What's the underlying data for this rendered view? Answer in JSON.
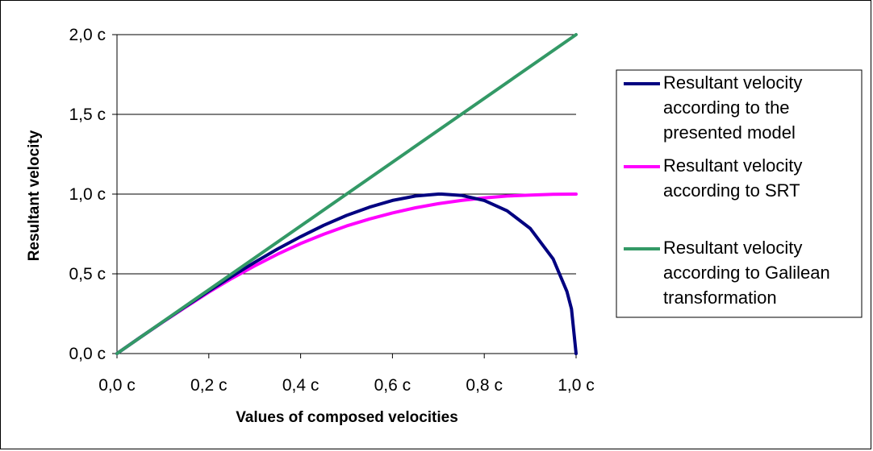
{
  "chart_data": {
    "type": "line",
    "title": "",
    "xlabel": "Values of composed velocities",
    "ylabel": "Resultant velocity",
    "xlim": [
      0,
      1
    ],
    "ylim": [
      0,
      2
    ],
    "x_ticks": [
      {
        "value": 0.0,
        "label": "0,0 c"
      },
      {
        "value": 0.2,
        "label": "0,2 c"
      },
      {
        "value": 0.4,
        "label": "0,4 c"
      },
      {
        "value": 0.6,
        "label": "0,6 c"
      },
      {
        "value": 0.8,
        "label": "0,8 c"
      },
      {
        "value": 1.0,
        "label": "1,0 c"
      }
    ],
    "y_ticks": [
      {
        "value": 0.0,
        "label": "0,0 c"
      },
      {
        "value": 0.5,
        "label": "0,5 c"
      },
      {
        "value": 1.0,
        "label": "1,0 c"
      },
      {
        "value": 1.5,
        "label": "1,5 c"
      },
      {
        "value": 2.0,
        "label": "2,0 c"
      }
    ],
    "grid": "horizontal",
    "legend_position": "right",
    "series": [
      {
        "name": "Resultant velocity according to the presented model",
        "legend_lines": [
          "Resultant velocity",
          "according to the",
          "presented model"
        ],
        "color": "#000080",
        "x": [
          0.0,
          0.05,
          0.1,
          0.15,
          0.2,
          0.25,
          0.3,
          0.35,
          0.4,
          0.45,
          0.5,
          0.55,
          0.6,
          0.65,
          0.7,
          0.707,
          0.75,
          0.8,
          0.85,
          0.9,
          0.95,
          0.98,
          0.99,
          1.0
        ],
        "values": [
          0.0,
          0.1,
          0.199,
          0.296,
          0.392,
          0.484,
          0.572,
          0.656,
          0.733,
          0.804,
          0.866,
          0.918,
          0.96,
          0.988,
          0.9998,
          1.0,
          0.992,
          0.96,
          0.895,
          0.785,
          0.594,
          0.39,
          0.28,
          0.0
        ]
      },
      {
        "name": "Resultant velocity according to SRT",
        "legend_lines": [
          "Resultant velocity",
          "according to SRT"
        ],
        "color": "#ff00ff",
        "x": [
          0.0,
          0.05,
          0.1,
          0.15,
          0.2,
          0.25,
          0.3,
          0.35,
          0.4,
          0.45,
          0.5,
          0.55,
          0.6,
          0.65,
          0.7,
          0.75,
          0.8,
          0.85,
          0.9,
          0.95,
          1.0
        ],
        "values": [
          0.0,
          0.1,
          0.198,
          0.292,
          0.385,
          0.471,
          0.55,
          0.623,
          0.69,
          0.748,
          0.8,
          0.844,
          0.882,
          0.914,
          0.94,
          0.96,
          0.976,
          0.988,
          0.994,
          0.999,
          1.0
        ]
      },
      {
        "name": "Resultant velocity according to Galilean transformation",
        "legend_lines": [
          "Resultant velocity",
          "according to Galilean",
          "transformation"
        ],
        "color": "#339966",
        "x": [
          0.0,
          1.0
        ],
        "values": [
          0.0,
          2.0
        ]
      }
    ]
  }
}
